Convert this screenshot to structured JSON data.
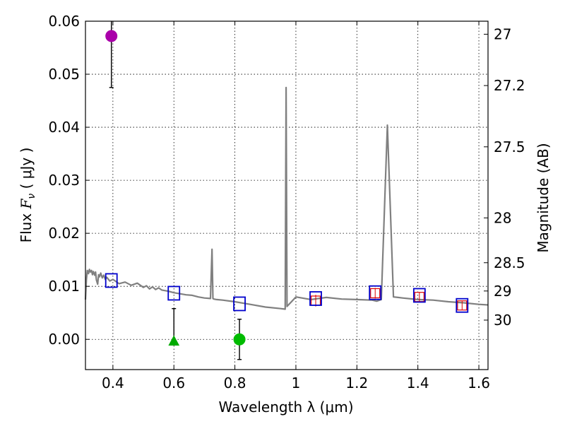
{
  "chart_data": {
    "type": "scatter",
    "title": "",
    "xlabel": "Wavelength  λ (μm)",
    "ylabel": "Flux  F_ν  ( μJy )",
    "ylabel_parts": {
      "prefix": "Flux  ",
      "var": "F",
      "sub": "ν",
      "suffix": "  ( μJy )"
    },
    "y2label": "Magnitude (AB)",
    "xlim": [
      0.31,
      1.63
    ],
    "ylim": [
      -0.0057,
      0.06
    ],
    "grid": true,
    "xticks": [
      0.4,
      0.6,
      0.8,
      1.0,
      1.2,
      1.4,
      1.6
    ],
    "xtick_labels": [
      "0.4",
      "0.6",
      "0.8",
      "1",
      "1.2",
      "1.4",
      "1.6"
    ],
    "yticks": [
      0.0,
      0.01,
      0.02,
      0.03,
      0.04,
      0.05,
      0.06
    ],
    "ytick_labels": [
      "0.00",
      "0.01",
      "0.02",
      "0.03",
      "0.04",
      "0.05",
      "0.06"
    ],
    "y2ticks": [
      {
        "label": "27",
        "mag": 27.0
      },
      {
        "label": "27.2",
        "mag": 27.2
      },
      {
        "label": "27.5",
        "mag": 27.5
      },
      {
        "label": "28",
        "mag": 28.0
      },
      {
        "label": "28.5",
        "mag": 28.5
      },
      {
        "label": "29",
        "mag": 29.0
      },
      {
        "label": "30",
        "mag": 30.0
      }
    ],
    "model_spectrum": {
      "name": "SED model",
      "color": "#808080",
      "x": [
        0.31,
        0.313,
        0.316,
        0.32,
        0.323,
        0.326,
        0.33,
        0.333,
        0.336,
        0.34,
        0.343,
        0.346,
        0.35,
        0.353,
        0.356,
        0.36,
        0.365,
        0.37,
        0.375,
        0.38,
        0.39,
        0.4,
        0.42,
        0.44,
        0.46,
        0.48,
        0.5,
        0.51,
        0.52,
        0.53,
        0.54,
        0.55,
        0.56,
        0.58,
        0.6,
        0.62,
        0.64,
        0.66,
        0.68,
        0.7,
        0.72,
        0.725,
        0.728,
        0.731,
        0.74,
        0.76,
        0.8,
        0.85,
        0.9,
        0.95,
        0.965,
        0.968,
        0.971,
        0.974,
        1.0,
        1.05,
        1.1,
        1.15,
        1.2,
        1.25,
        1.265,
        1.28,
        1.3,
        1.32,
        1.335,
        1.35,
        1.4,
        1.45,
        1.5,
        1.55,
        1.6,
        1.63
      ],
      "y": [
        0.0075,
        0.0112,
        0.013,
        0.0124,
        0.0132,
        0.0127,
        0.013,
        0.0122,
        0.0128,
        0.0121,
        0.0127,
        0.0112,
        0.0104,
        0.0122,
        0.0118,
        0.0125,
        0.0116,
        0.0121,
        0.0113,
        0.0117,
        0.011,
        0.0113,
        0.0105,
        0.0108,
        0.0102,
        0.0106,
        0.0098,
        0.0101,
        0.0095,
        0.0099,
        0.0094,
        0.0097,
        0.0093,
        0.0091,
        0.0088,
        0.0086,
        0.0084,
        0.0083,
        0.008,
        0.0078,
        0.0077,
        0.017,
        0.0077,
        0.0076,
        0.0075,
        0.0074,
        0.0071,
        0.0066,
        0.0061,
        0.0058,
        0.0057,
        0.0475,
        0.0062,
        0.0064,
        0.008,
        0.0075,
        0.0079,
        0.0076,
        0.0075,
        0.0074,
        0.0072,
        0.0075,
        0.0404,
        0.008,
        0.0079,
        0.0078,
        0.0075,
        0.0074,
        0.0071,
        0.0069,
        0.0066,
        0.0065
      ]
    },
    "model_photometry": {
      "name": "model bands",
      "color": "#0000cc",
      "x": [
        0.395,
        0.6,
        0.815,
        1.065,
        1.26,
        1.405,
        1.545
      ],
      "y": [
        0.0111,
        0.0087,
        0.0067,
        0.0077,
        0.0088,
        0.0083,
        0.0064
      ]
    },
    "observed_photometry": {
      "name": "observed bands",
      "color": "#dd0000",
      "x": [
        1.065,
        1.26,
        1.405,
        1.545
      ],
      "y": [
        0.0073,
        0.0087,
        0.008,
        0.0064
      ],
      "err": [
        0.0011,
        0.001,
        0.0009,
        0.0008
      ]
    },
    "points": [
      {
        "name": "violet point",
        "color": "#aa00aa",
        "marker": "circle",
        "x": 0.395,
        "y": 0.0572,
        "err_low": 0.0475,
        "err_high": 0.0605
      },
      {
        "name": "green upper limit",
        "color": "#00aa00",
        "marker": "triangle",
        "x": 0.6,
        "y": -0.0003,
        "err_low": -0.0003,
        "err_high": 0.0058
      },
      {
        "name": "green point",
        "color": "#00bb00",
        "marker": "circle",
        "x": 0.815,
        "y": 0.0,
        "err_low": -0.0038,
        "err_high": 0.0038
      }
    ]
  }
}
